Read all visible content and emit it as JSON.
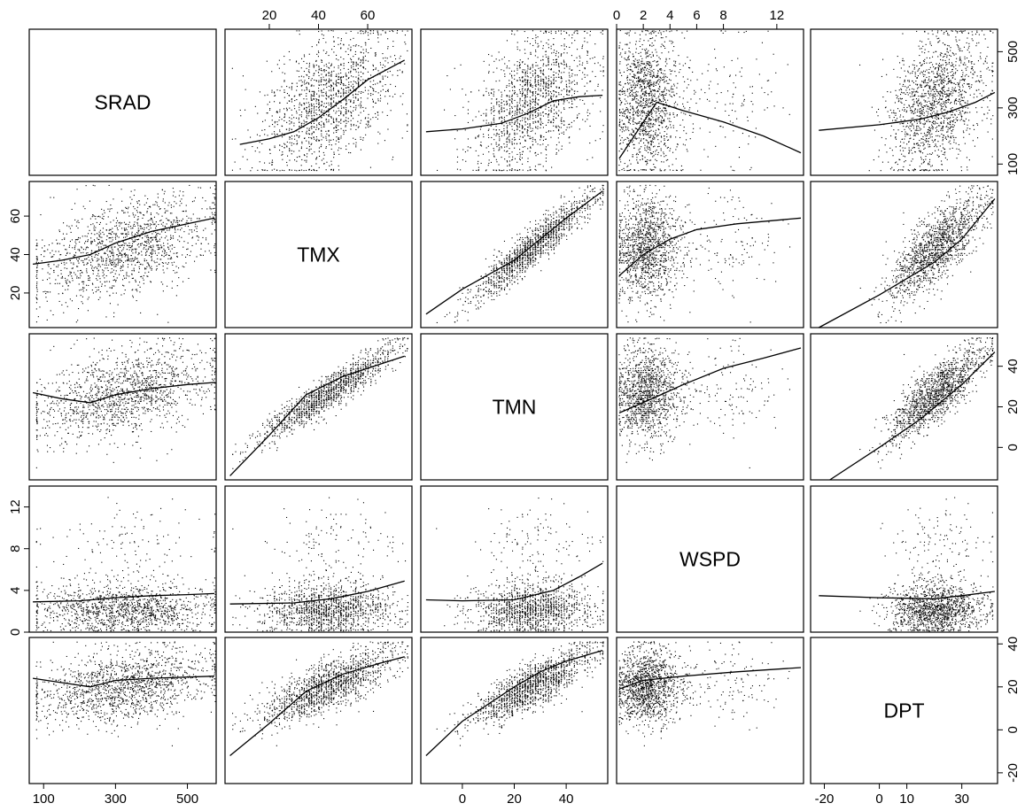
{
  "chart_data": {
    "type": "scatter",
    "matrix_type": "scatterplot-matrix",
    "variables": [
      {
        "name": "SRAD",
        "range": [
          60,
          580
        ],
        "ticks": [
          "100",
          "300",
          "500"
        ]
      },
      {
        "name": "TMX",
        "range": [
          2,
          78
        ],
        "ticks": [
          "20",
          "40",
          "60"
        ]
      },
      {
        "name": "TMN",
        "range": [
          -16,
          56
        ],
        "ticks": [
          "0",
          "20",
          "40"
        ]
      },
      {
        "name": "WSPD",
        "range": [
          0,
          14
        ],
        "ticks": [
          "0",
          "2",
          "4",
          "6",
          "8",
          "12"
        ]
      },
      {
        "name": "DPT",
        "range": [
          -25,
          43
        ],
        "ticks": [
          "-20",
          "0",
          "10",
          "30"
        ]
      }
    ],
    "right_axis_ticks": {
      "SRAD": [
        "100",
        "300",
        "500"
      ],
      "TMN": [
        "0",
        "20",
        "40"
      ],
      "DPT": [
        "-20",
        "0",
        "20",
        "40"
      ]
    },
    "left_axis_ticks": {
      "TMX": [
        "20",
        "40",
        "60"
      ],
      "WSPD": [
        "0",
        "4",
        "8",
        "12"
      ]
    },
    "top_axis_ticks": {
      "TMX": [
        "20",
        "40",
        "60"
      ],
      "WSPD": [
        "0",
        "2",
        "4",
        "6",
        "8",
        "12"
      ]
    },
    "bottom_axis_ticks": {
      "SRAD": [
        "100",
        "300",
        "500"
      ],
      "TMN": [
        "0",
        "20",
        "40"
      ],
      "DPT": [
        "-20",
        "0",
        "10",
        "30"
      ]
    },
    "smooth_curves": [
      {
        "x": "TMX",
        "y": "SRAD",
        "points": [
          [
            8,
            170
          ],
          [
            20,
            190
          ],
          [
            30,
            215
          ],
          [
            40,
            265
          ],
          [
            50,
            330
          ],
          [
            60,
            400
          ],
          [
            75,
            470
          ]
        ]
      },
      {
        "x": "TMN",
        "y": "SRAD",
        "points": [
          [
            -14,
            215
          ],
          [
            0,
            225
          ],
          [
            15,
            245
          ],
          [
            25,
            280
          ],
          [
            35,
            325
          ],
          [
            45,
            340
          ],
          [
            54,
            345
          ]
        ]
      },
      {
        "x": "WSPD",
        "y": "SRAD",
        "points": [
          [
            0.2,
            120
          ],
          [
            3,
            320
          ],
          [
            5,
            290
          ],
          [
            8,
            250
          ],
          [
            11,
            200
          ],
          [
            13.8,
            140
          ]
        ]
      },
      {
        "x": "DPT",
        "y": "SRAD",
        "points": [
          [
            -22,
            220
          ],
          [
            0,
            240
          ],
          [
            15,
            260
          ],
          [
            25,
            285
          ],
          [
            35,
            320
          ],
          [
            42,
            355
          ]
        ]
      },
      {
        "x": "SRAD",
        "y": "TMX",
        "points": [
          [
            70,
            35
          ],
          [
            150,
            37
          ],
          [
            230,
            40
          ],
          [
            300,
            46
          ],
          [
            400,
            52
          ],
          [
            500,
            56
          ],
          [
            575,
            59
          ]
        ]
      },
      {
        "x": "TMN",
        "y": "TMX",
        "points": [
          [
            -14,
            9
          ],
          [
            0,
            22
          ],
          [
            20,
            37
          ],
          [
            30,
            48
          ],
          [
            40,
            59
          ],
          [
            54,
            73
          ]
        ]
      },
      {
        "x": "WSPD",
        "y": "TMX",
        "points": [
          [
            0.2,
            29
          ],
          [
            2,
            40
          ],
          [
            4,
            48
          ],
          [
            6,
            53
          ],
          [
            9,
            56
          ],
          [
            13.8,
            59
          ]
        ]
      },
      {
        "x": "DPT",
        "y": "TMX",
        "points": [
          [
            -22,
            2
          ],
          [
            0,
            19
          ],
          [
            20,
            36
          ],
          [
            30,
            48
          ],
          [
            42,
            69
          ]
        ]
      },
      {
        "x": "SRAD",
        "y": "TMN",
        "points": [
          [
            70,
            27
          ],
          [
            150,
            24
          ],
          [
            230,
            22
          ],
          [
            300,
            26
          ],
          [
            400,
            29
          ],
          [
            500,
            31
          ],
          [
            575,
            32
          ]
        ]
      },
      {
        "x": "TMX",
        "y": "TMN",
        "points": [
          [
            4,
            -14
          ],
          [
            20,
            6
          ],
          [
            35,
            26
          ],
          [
            50,
            35
          ],
          [
            65,
            41
          ],
          [
            75,
            45
          ]
        ]
      },
      {
        "x": "WSPD",
        "y": "TMN",
        "points": [
          [
            0.2,
            17
          ],
          [
            3,
            25
          ],
          [
            5,
            31
          ],
          [
            8,
            39
          ],
          [
            11,
            44
          ],
          [
            13.8,
            49
          ]
        ]
      },
      {
        "x": "DPT",
        "y": "TMN",
        "points": [
          [
            -18,
            -16
          ],
          [
            0,
            0
          ],
          [
            15,
            14
          ],
          [
            30,
            31
          ],
          [
            42,
            47
          ]
        ]
      },
      {
        "x": "SRAD",
        "y": "WSPD",
        "points": [
          [
            70,
            2.9
          ],
          [
            200,
            3.0
          ],
          [
            300,
            3.3
          ],
          [
            400,
            3.5
          ],
          [
            500,
            3.6
          ],
          [
            575,
            3.7
          ]
        ]
      },
      {
        "x": "TMX",
        "y": "WSPD",
        "points": [
          [
            4,
            2.7
          ],
          [
            30,
            2.8
          ],
          [
            45,
            3.2
          ],
          [
            60,
            3.9
          ],
          [
            75,
            4.9
          ]
        ]
      },
      {
        "x": "TMN",
        "y": "WSPD",
        "points": [
          [
            -14,
            3.1
          ],
          [
            0,
            3.0
          ],
          [
            20,
            3.1
          ],
          [
            35,
            4.0
          ],
          [
            45,
            5.3
          ],
          [
            54,
            6.6
          ]
        ]
      },
      {
        "x": "DPT",
        "y": "WSPD",
        "points": [
          [
            -22,
            3.5
          ],
          [
            0,
            3.3
          ],
          [
            20,
            3.2
          ],
          [
            30,
            3.5
          ],
          [
            42,
            3.9
          ]
        ]
      },
      {
        "x": "SRAD",
        "y": "DPT",
        "points": [
          [
            70,
            24
          ],
          [
            150,
            22
          ],
          [
            230,
            20
          ],
          [
            300,
            23
          ],
          [
            400,
            24
          ],
          [
            575,
            25
          ]
        ]
      },
      {
        "x": "TMX",
        "y": "DPT",
        "points": [
          [
            4,
            -12
          ],
          [
            20,
            3
          ],
          [
            35,
            18
          ],
          [
            50,
            26
          ],
          [
            65,
            31
          ],
          [
            75,
            34
          ]
        ]
      },
      {
        "x": "TMN",
        "y": "DPT",
        "points": [
          [
            -14,
            -12
          ],
          [
            0,
            4
          ],
          [
            20,
            20
          ],
          [
            30,
            27
          ],
          [
            40,
            32
          ],
          [
            54,
            37
          ]
        ]
      },
      {
        "x": "WSPD",
        "y": "DPT",
        "points": [
          [
            0.2,
            19
          ],
          [
            2,
            23
          ],
          [
            5,
            25
          ],
          [
            9,
            27
          ],
          [
            13.8,
            29
          ]
        ]
      }
    ],
    "grid": false,
    "legend": "none"
  }
}
